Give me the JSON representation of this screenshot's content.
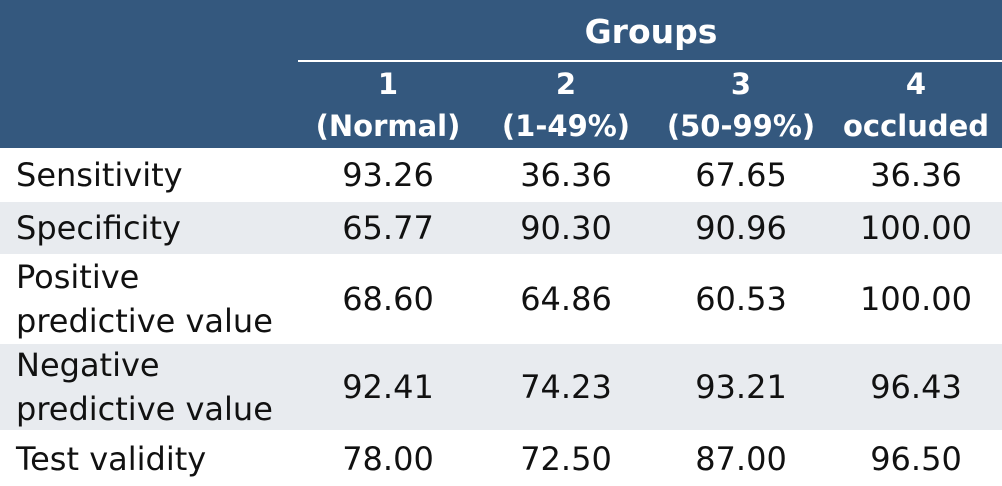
{
  "header": {
    "groups_title": "Groups",
    "columns": [
      {
        "number": "1",
        "label": "(Normal)"
      },
      {
        "number": "2",
        "label": "(1-49%)"
      },
      {
        "number": "3",
        "label": "(50-99%)"
      },
      {
        "number": "4",
        "label": "occluded"
      }
    ]
  },
  "rows": [
    {
      "label": "Sensitivity",
      "values": [
        "93.26",
        "36.36",
        "67.65",
        "36.36"
      ]
    },
    {
      "label": "Specificity",
      "values": [
        "65.77",
        "90.30",
        "90.96",
        "100.00"
      ]
    },
    {
      "label_line1": "Positive",
      "label_line2": "predictive value",
      "values": [
        "68.60",
        "64.86",
        "60.53",
        "100.00"
      ]
    },
    {
      "label_line1": "Negative",
      "label_line2": "predictive value",
      "values": [
        "92.41",
        "74.23",
        "93.21",
        "96.43"
      ]
    },
    {
      "label": "Test validity",
      "values": [
        "78.00",
        "72.50",
        "87.00",
        "96.50"
      ]
    }
  ],
  "colors": {
    "header_bg": "#34587e",
    "row_shade": "#e8ebef",
    "row_plain": "#ffffff"
  }
}
